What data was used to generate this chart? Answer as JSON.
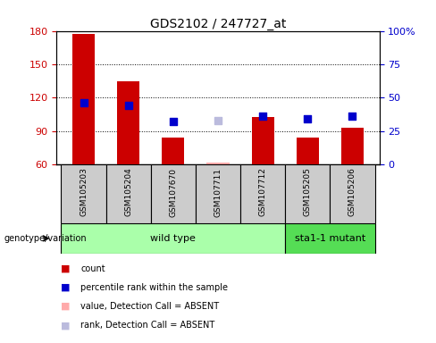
{
  "title": "GDS2102 / 247727_at",
  "samples": [
    "GSM105203",
    "GSM105204",
    "GSM107670",
    "GSM107711",
    "GSM107712",
    "GSM105205",
    "GSM105206"
  ],
  "count_values": [
    177,
    135,
    84,
    62,
    103,
    84,
    93
  ],
  "percentile_values": [
    46,
    44,
    32,
    null,
    36,
    34,
    36
  ],
  "absent_count": [
    null,
    null,
    null,
    62,
    null,
    null,
    null
  ],
  "absent_rank": [
    null,
    null,
    null,
    33,
    null,
    null,
    null
  ],
  "count_color": "#cc0000",
  "percentile_color": "#0000cc",
  "absent_count_color": "#ffaaaa",
  "absent_rank_color": "#bbbbdd",
  "ylim_left": [
    60,
    180
  ],
  "ylim_right": [
    0,
    100
  ],
  "yticks_left": [
    60,
    90,
    120,
    150,
    180
  ],
  "yticks_right": [
    0,
    25,
    50,
    75,
    100
  ],
  "yticklabels_right": [
    "0",
    "25",
    "50",
    "75",
    "100%"
  ],
  "groups": [
    {
      "label": "wild type",
      "indices": [
        0,
        1,
        2,
        3,
        4
      ],
      "color": "#aaffaa"
    },
    {
      "label": "sta1-1 mutant",
      "indices": [
        5,
        6
      ],
      "color": "#55dd55"
    }
  ],
  "genotype_label": "genotype/variation",
  "legend_items": [
    {
      "label": "count",
      "color": "#cc0000"
    },
    {
      "label": "percentile rank within the sample",
      "color": "#0000cc"
    },
    {
      "label": "value, Detection Call = ABSENT",
      "color": "#ffaaaa"
    },
    {
      "label": "rank, Detection Call = ABSENT",
      "color": "#bbbbdd"
    }
  ],
  "bar_width": 0.5,
  "dot_size": 40,
  "background_color": "#ffffff",
  "left_tick_color": "#cc0000",
  "right_tick_color": "#0000cc",
  "sample_bg_color": "#cccccc"
}
